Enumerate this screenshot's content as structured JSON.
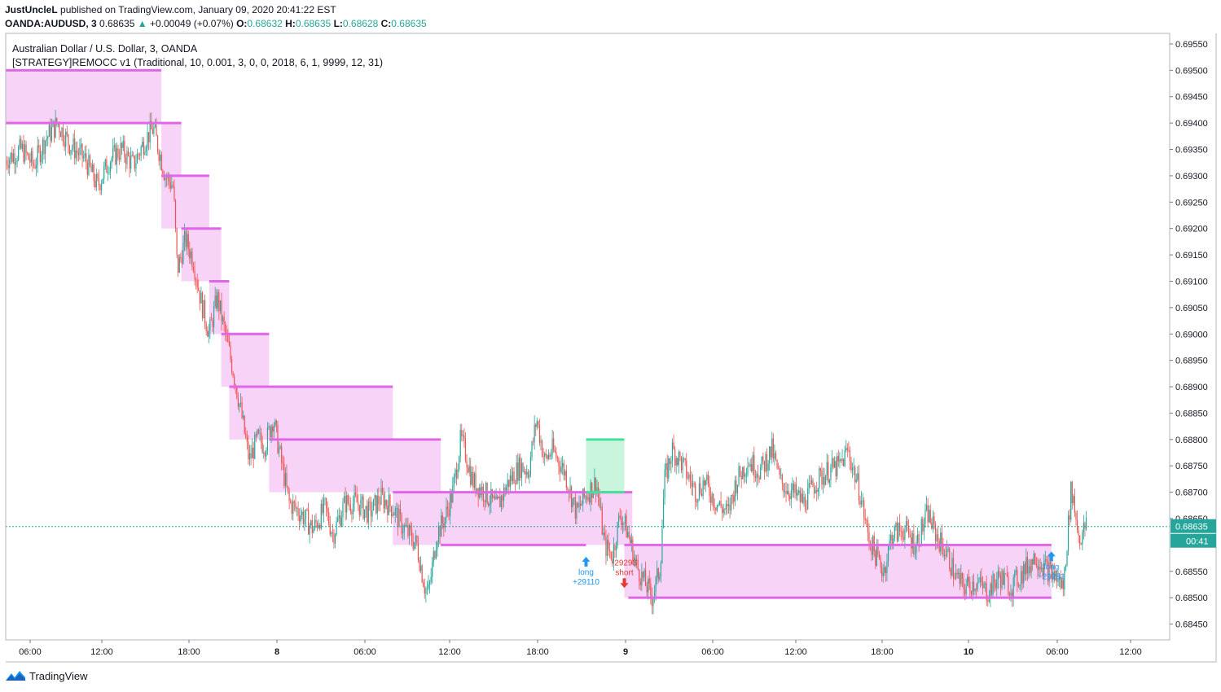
{
  "header": {
    "publisher": "JustUncleL",
    "published_text": "published on TradingView.com, January 09, 2020 20:41:22 EST",
    "symbol": "OANDA:AUDUSD, 3",
    "last_price": "0.68635",
    "change": "+0.00049 (+0.07%)",
    "change_arrow": "▲",
    "o_label": "O:",
    "o_value": "0.68632",
    "h_label": "H:",
    "h_value": "0.68635",
    "l_label": "L:",
    "l_value": "0.68628",
    "c_label": "C:",
    "c_value": "0.68635"
  },
  "legend": {
    "title": "Australian Dollar / U.S. Dollar, 3, OANDA",
    "strategy": "[STRATEGY]REMOCC v1 (Traditional, 10, 0.001, 3, 0, 0, 2018, 6, 1, 9999, 12, 31)"
  },
  "price_axis": {
    "current_price_label": "0.68635",
    "countdown_label": "00:41"
  },
  "footer": {
    "brand": "TradingView"
  },
  "colors": {
    "up": "#26a69a",
    "down": "#ef5350",
    "band": "#f8d3f8",
    "band_line": "#e066e8",
    "profit_band": "#c8f5dc",
    "profit_line": "#48e098",
    "long_marker": "#2196f3",
    "short_marker": "#e53935"
  },
  "chart_data": {
    "type": "candlestick",
    "title": "Australian Dollar / U.S. Dollar, 3, OANDA",
    "ylim": [
      0.6842,
      0.6957
    ],
    "y_ticks": [
      "0.69550",
      "0.69500",
      "0.69450",
      "0.69400",
      "0.69350",
      "0.69300",
      "0.69250",
      "0.69200",
      "0.69150",
      "0.69100",
      "0.69050",
      "0.69000",
      "0.68950",
      "0.68900",
      "0.68850",
      "0.68800",
      "0.68750",
      "0.68700",
      "0.68650",
      "0.68550",
      "0.68500",
      "0.68450"
    ],
    "x_ticks": [
      "06:00",
      "12:00",
      "18:00",
      "8",
      "06:00",
      "12:00",
      "18:00",
      "9",
      "06:00",
      "12:00",
      "18:00",
      "10",
      "06:00",
      "12:00"
    ],
    "price_path": [
      [
        0.0,
        0.6933
      ],
      [
        0.02,
        0.6935
      ],
      [
        0.035,
        0.6932
      ],
      [
        0.05,
        0.6937
      ],
      [
        0.065,
        0.694
      ],
      [
        0.08,
        0.6936
      ],
      [
        0.1,
        0.6933
      ],
      [
        0.115,
        0.6928
      ],
      [
        0.13,
        0.6933
      ],
      [
        0.145,
        0.6935
      ],
      [
        0.16,
        0.6932
      ],
      [
        0.175,
        0.6937
      ],
      [
        0.185,
        0.6939
      ],
      [
        0.2,
        0.693
      ],
      [
        0.21,
        0.6928
      ],
      [
        0.215,
        0.6912
      ],
      [
        0.225,
        0.6918
      ],
      [
        0.235,
        0.6914
      ],
      [
        0.245,
        0.6906
      ],
      [
        0.255,
        0.69
      ],
      [
        0.265,
        0.6907
      ],
      [
        0.275,
        0.69
      ],
      [
        0.285,
        0.6893
      ],
      [
        0.295,
        0.6885
      ],
      [
        0.305,
        0.6876
      ],
      [
        0.315,
        0.688
      ],
      [
        0.325,
        0.6879
      ],
      [
        0.335,
        0.6884
      ],
      [
        0.345,
        0.6876
      ],
      [
        0.355,
        0.6868
      ],
      [
        0.37,
        0.6866
      ],
      [
        0.385,
        0.6863
      ],
      [
        0.4,
        0.6867
      ],
      [
        0.41,
        0.6862
      ],
      [
        0.425,
        0.6868
      ],
      [
        0.44,
        0.6868
      ],
      [
        0.455,
        0.6866
      ],
      [
        0.47,
        0.6869
      ],
      [
        0.485,
        0.6867
      ],
      [
        0.495,
        0.6864
      ],
      [
        0.505,
        0.6862
      ],
      [
        0.515,
        0.686
      ],
      [
        0.525,
        0.6852
      ],
      [
        0.53,
        0.6851
      ],
      [
        0.54,
        0.6862
      ],
      [
        0.55,
        0.6865
      ],
      [
        0.56,
        0.687
      ],
      [
        0.57,
        0.688
      ],
      [
        0.575,
        0.6878
      ],
      [
        0.585,
        0.6872
      ],
      [
        0.6,
        0.687
      ],
      [
        0.615,
        0.6867
      ],
      [
        0.63,
        0.6872
      ],
      [
        0.645,
        0.6875
      ],
      [
        0.655,
        0.6874
      ],
      [
        0.665,
        0.6884
      ],
      [
        0.675,
        0.6876
      ],
      [
        0.685,
        0.6878
      ],
      [
        0.7,
        0.6874
      ],
      [
        0.715,
        0.6866
      ],
      [
        0.725,
        0.6869
      ],
      [
        0.74,
        0.6872
      ],
      [
        0.75,
        0.686
      ],
      [
        0.76,
        0.6858
      ],
      [
        0.77,
        0.6866
      ],
      [
        0.78,
        0.6862
      ],
      [
        0.79,
        0.6856
      ],
      [
        0.8,
        0.6853
      ],
      [
        0.81,
        0.685
      ],
      [
        0.82,
        0.6856
      ],
      [
        0.825,
        0.6872
      ],
      [
        0.835,
        0.6878
      ],
      [
        0.845,
        0.6876
      ],
      [
        0.855,
        0.6873
      ],
      [
        0.865,
        0.687
      ],
      [
        0.875,
        0.6872
      ],
      [
        0.89,
        0.6868
      ],
      [
        0.905,
        0.6866
      ],
      [
        0.915,
        0.6872
      ],
      [
        0.93,
        0.6876
      ],
      [
        0.945,
        0.6874
      ],
      [
        0.96,
        0.6878
      ],
      [
        0.97,
        0.6872
      ],
      [
        0.985,
        0.687
      ],
      [
        1.0,
        0.6868
      ],
      [
        1.015,
        0.6872
      ],
      [
        1.03,
        0.6874
      ],
      [
        1.045,
        0.6875
      ],
      [
        1.055,
        0.6878
      ],
      [
        1.07,
        0.687
      ],
      [
        1.08,
        0.6862
      ],
      [
        1.09,
        0.6858
      ],
      [
        1.1,
        0.6855
      ],
      [
        1.11,
        0.6862
      ],
      [
        1.125,
        0.6863
      ],
      [
        1.14,
        0.686
      ],
      [
        1.155,
        0.6866
      ],
      [
        1.165,
        0.6862
      ],
      [
        1.18,
        0.6858
      ],
      [
        1.19,
        0.6854
      ],
      [
        1.2,
        0.6852
      ],
      [
        1.215,
        0.6853
      ],
      [
        1.23,
        0.6851
      ],
      [
        1.245,
        0.6854
      ],
      [
        1.26,
        0.6852
      ],
      [
        1.275,
        0.6855
      ],
      [
        1.29,
        0.6858
      ],
      [
        1.3,
        0.6856
      ],
      [
        1.315,
        0.6854
      ],
      [
        1.325,
        0.6852
      ],
      [
        1.335,
        0.6871
      ],
      [
        1.345,
        0.6861
      ],
      [
        1.355,
        0.6864
      ]
    ],
    "zones": [
      {
        "x0": 0.0,
        "x1": 0.195,
        "top": 0.695,
        "bottom": 0.694
      },
      {
        "x0": 0.195,
        "x1": 0.22,
        "top": 0.694,
        "bottom": 0.693
      },
      {
        "x0": 0.195,
        "x1": 0.255,
        "top": 0.693,
        "bottom": 0.692
      },
      {
        "x0": 0.22,
        "x1": 0.27,
        "top": 0.692,
        "bottom": 0.691
      },
      {
        "x0": 0.255,
        "x1": 0.28,
        "top": 0.691,
        "bottom": 0.69
      },
      {
        "x0": 0.27,
        "x1": 0.33,
        "top": 0.69,
        "bottom": 0.689
      },
      {
        "x0": 0.28,
        "x1": 0.485,
        "top": 0.689,
        "bottom": 0.688
      },
      {
        "x0": 0.33,
        "x1": 0.545,
        "top": 0.688,
        "bottom": 0.687
      },
      {
        "x0": 0.485,
        "x1": 0.785,
        "top": 0.687,
        "bottom": 0.686
      },
      {
        "x0": 0.775,
        "x1": 1.31,
        "top": 0.686,
        "bottom": 0.685
      }
    ],
    "profit_zones": [
      {
        "x0": 0.727,
        "x1": 0.775,
        "top": 0.688,
        "bottom": 0.687
      }
    ],
    "band_lines": [
      {
        "x0": 0.0,
        "x1": 0.195,
        "y": 0.695
      },
      {
        "x0": 0.0,
        "x1": 0.22,
        "y": 0.694
      },
      {
        "x0": 0.195,
        "x1": 0.255,
        "y": 0.693
      },
      {
        "x0": 0.22,
        "x1": 0.27,
        "y": 0.692
      },
      {
        "x0": 0.255,
        "x1": 0.28,
        "y": 0.691
      },
      {
        "x0": 0.27,
        "x1": 0.33,
        "y": 0.69
      },
      {
        "x0": 0.28,
        "x1": 0.485,
        "y": 0.689
      },
      {
        "x0": 0.33,
        "x1": 0.545,
        "y": 0.688
      },
      {
        "x0": 0.485,
        "x1": 0.785,
        "y": 0.687
      },
      {
        "x0": 0.545,
        "x1": 0.727,
        "y": 0.686
      },
      {
        "x0": 0.775,
        "x1": 1.31,
        "y": 0.686
      },
      {
        "x0": 0.78,
        "x1": 1.31,
        "y": 0.685
      }
    ],
    "profit_lines": [
      {
        "x0": 0.727,
        "x1": 0.775,
        "y": 0.688
      },
      {
        "x0": 0.727,
        "x1": 0.775,
        "y": 0.687
      }
    ],
    "trades": [
      {
        "x": 0.727,
        "y": 0.6859,
        "side": "long",
        "label1": "long",
        "label2": "+29110"
      },
      {
        "x": 0.775,
        "y": 0.6854,
        "side": "short",
        "label1": "short",
        "label2": "-29293"
      },
      {
        "x": 1.31,
        "y": 0.686,
        "side": "long",
        "label1": "long",
        "label2": "+29281"
      }
    ]
  }
}
